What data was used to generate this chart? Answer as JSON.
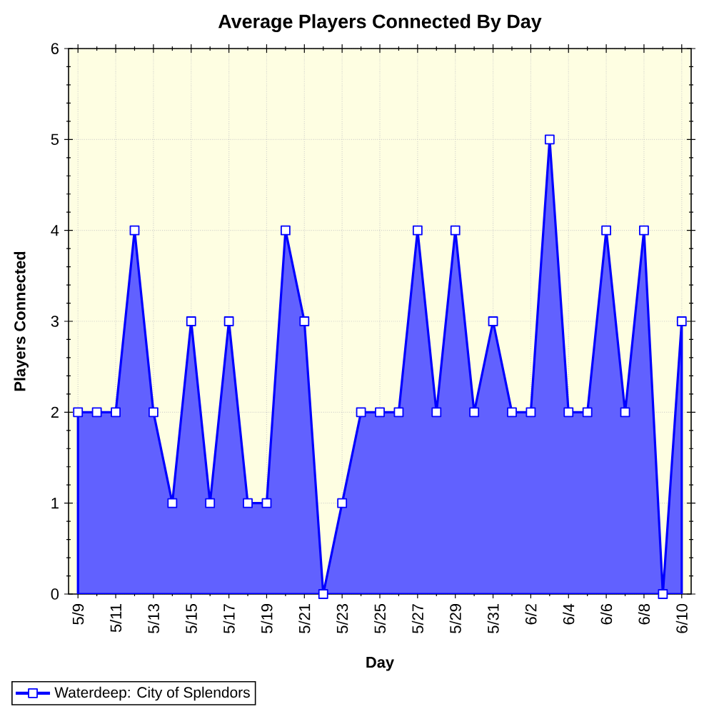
{
  "chart_data": {
    "type": "area",
    "title": "Average Players Connected By Day",
    "xlabel": "Day",
    "ylabel": "Players Connected",
    "categories": [
      "5/9",
      null,
      "5/11",
      null,
      "5/13",
      null,
      "5/15",
      null,
      "5/17",
      null,
      "5/19",
      null,
      "5/21",
      null,
      "5/23",
      null,
      "5/25",
      null,
      "5/27",
      null,
      "5/29",
      null,
      "5/31",
      null,
      "6/2",
      null,
      "6/4",
      null,
      "6/6",
      null,
      "6/8",
      null,
      "6/10"
    ],
    "series": [
      {
        "name": "Waterdeep: City of Splendors",
        "color": "#0000ff",
        "values": [
          2,
          2,
          2,
          4,
          2,
          1,
          3,
          1,
          3,
          1,
          1,
          4,
          3,
          0,
          1,
          2,
          2,
          2,
          4,
          2,
          4,
          2,
          3,
          2,
          2,
          5,
          2,
          2,
          4,
          2,
          4,
          0,
          3
        ]
      }
    ],
    "ylim": [
      0,
      6
    ],
    "yticks": [
      0,
      1,
      2,
      3,
      4,
      5,
      6
    ],
    "grid": true,
    "legend": "bottom left",
    "marker": "square"
  }
}
